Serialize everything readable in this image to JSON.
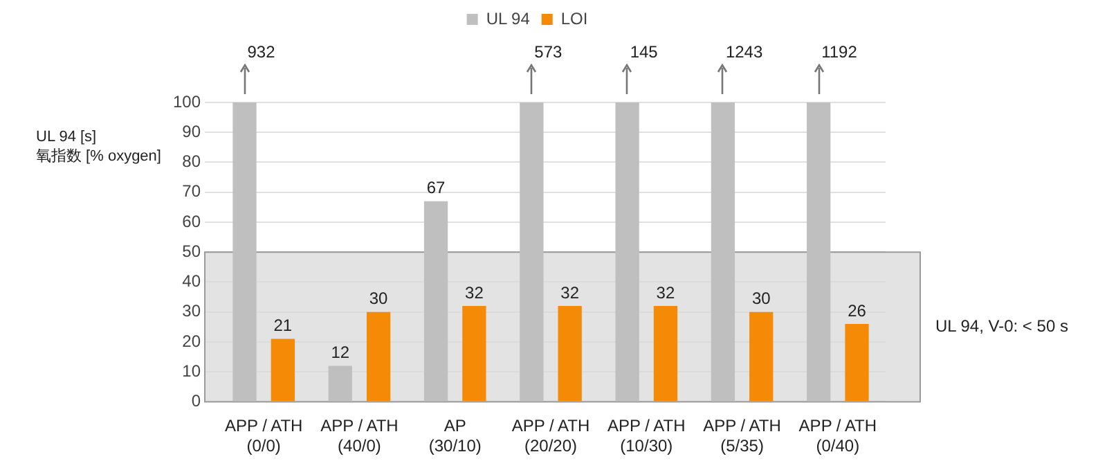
{
  "chart_data": {
    "type": "bar",
    "ylabel": "UL 94 [s]\n氧指数 [% oxygen]",
    "categories": [
      "APP / ATH\n(0/0)",
      "APP / ATH\n(40/0)",
      "AP\n(30/10)",
      "APP / ATH\n(20/20)",
      "APP / ATH\n(10/30)",
      "APP / ATH\n(5/35)",
      "APP / ATH\n(0/40)"
    ],
    "series": [
      {
        "name": "UL 94",
        "color": "#bfbfbf",
        "values": [
          100,
          12,
          67,
          100,
          100,
          100,
          100
        ],
        "value_labels": [
          null,
          "12",
          "67",
          null,
          null,
          null,
          null
        ]
      },
      {
        "name": "LOI",
        "color": "#f58a07",
        "values": [
          21,
          30,
          32,
          32,
          32,
          30,
          26
        ],
        "value_labels": [
          "21",
          "30",
          "32",
          "32",
          "32",
          "30",
          "26"
        ]
      }
    ],
    "annotations": [
      "932",
      "573",
      "145",
      "1243",
      "1192"
    ],
    "ylim": [
      0,
      100
    ],
    "yticks": [
      0,
      10,
      20,
      30,
      40,
      50,
      60,
      70,
      80,
      90,
      100
    ],
    "grid": "y",
    "legend": "top",
    "bands": [
      {
        "axis": "y",
        "from": 0,
        "to": 50,
        "label": "UL 94, V-0: < 50 s",
        "color": "#d9d9d9"
      }
    ]
  }
}
